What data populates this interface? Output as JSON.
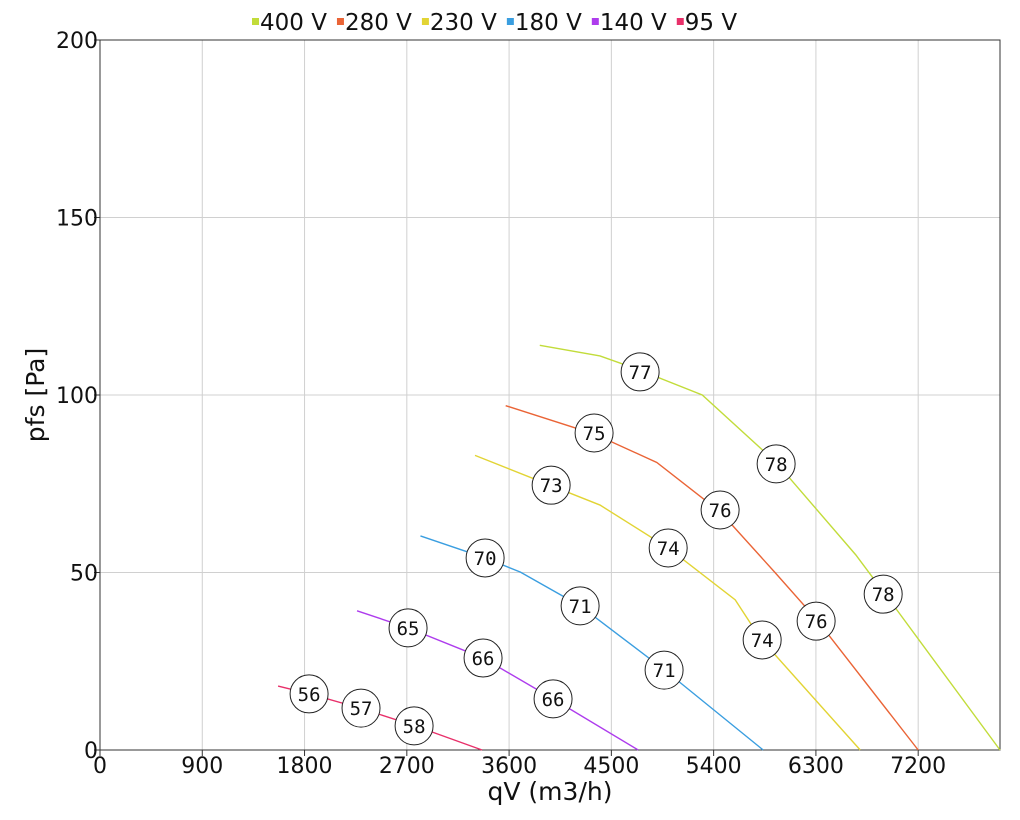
{
  "chart_data": {
    "type": "line",
    "x_label": "qV (m3/h)",
    "y_label": "pfs [Pa]",
    "xlim": [
      0,
      7920
    ],
    "ylim": [
      0,
      200
    ],
    "xticks": [
      0,
      900,
      1800,
      2700,
      3600,
      4500,
      5400,
      6300,
      7200
    ],
    "yticks": [
      0,
      50,
      100,
      150,
      200
    ],
    "grid": true,
    "legend": "top",
    "series": [
      {
        "name": "400 V",
        "color": "#c2dc3a",
        "x": [
          3870,
          4400,
          4750,
          5300,
          5950,
          6650,
          7000,
          7920
        ],
        "values": [
          114,
          111,
          107,
          100,
          81,
          55,
          40,
          0
        ],
        "markers": [
          {
            "x": 4753,
            "y": 106.5,
            "value": 77
          },
          {
            "x": 5950,
            "y": 80.6,
            "value": 78
          },
          {
            "x": 6892,
            "y": 43.9,
            "value": 78
          }
        ]
      },
      {
        "name": "280 V",
        "color": "#ea6436",
        "x": [
          3570,
          4350,
          4900,
          5460,
          5940,
          6300,
          7200
        ],
        "values": [
          97,
          89,
          81,
          67,
          50,
          37,
          0
        ],
        "markers": [
          {
            "x": 4348,
            "y": 89.3,
            "value": 75
          },
          {
            "x": 5457,
            "y": 67.6,
            "value": 76
          },
          {
            "x": 6302,
            "y": 36.3,
            "value": 76
          }
        ]
      },
      {
        "name": "230 V",
        "color": "#e2d434",
        "x": [
          3300,
          3960,
          4400,
          5000,
          5590,
          5810,
          6690
        ],
        "values": [
          83,
          74.6,
          69,
          56.9,
          42.3,
          31.5,
          0
        ],
        "markers": [
          {
            "x": 3970,
            "y": 74.6,
            "value": 73
          },
          {
            "x": 5000,
            "y": 56.9,
            "value": 74
          },
          {
            "x": 5827,
            "y": 31,
            "value": 74
          }
        ]
      },
      {
        "name": "180 V",
        "color": "#3a9ee0",
        "x": [
          2820,
          3390,
          3700,
          4225,
          4970,
          5836
        ],
        "values": [
          60.3,
          54.1,
          50.1,
          40.6,
          22.5,
          0
        ],
        "markers": [
          {
            "x": 3389,
            "y": 54.1,
            "value": 70
          },
          {
            "x": 4225,
            "y": 40.6,
            "value": 71
          },
          {
            "x": 4964,
            "y": 22.5,
            "value": 71
          }
        ]
      },
      {
        "name": "140 V",
        "color": "#ae3ced",
        "x": [
          2262,
          2711,
          3371,
          3987,
          4736
        ],
        "values": [
          39.2,
          34.4,
          25.9,
          14.4,
          0
        ],
        "markers": [
          {
            "x": 2711,
            "y": 34.4,
            "value": 65
          },
          {
            "x": 3371,
            "y": 25.9,
            "value": 66
          },
          {
            "x": 3987,
            "y": 14.4,
            "value": 66
          }
        ]
      },
      {
        "name": "95 V",
        "color": "#e8306a",
        "x": [
          1567,
          1848,
          2288,
          2773,
          3362
        ],
        "values": [
          18,
          15.8,
          11.8,
          6.8,
          0
        ],
        "markers": [
          {
            "x": 1840,
            "y": 15.8,
            "value": 56
          },
          {
            "x": 2297,
            "y": 11.8,
            "value": 57
          },
          {
            "x": 2764,
            "y": 6.8,
            "value": 58
          }
        ]
      }
    ]
  }
}
